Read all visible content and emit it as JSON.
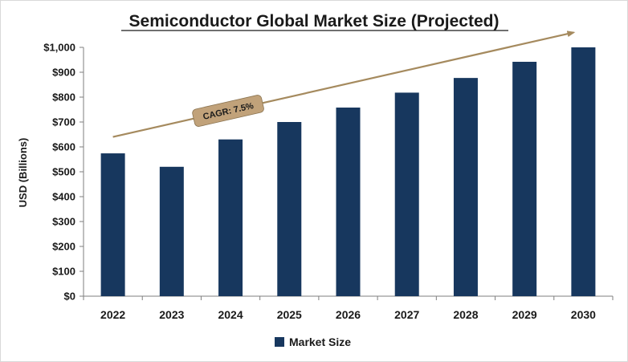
{
  "chart_data": {
    "type": "bar",
    "title": "Semiconductor Global Market Size (Projected)",
    "xlabel": "",
    "ylabel": "USD (Billions)",
    "categories": [
      "2022",
      "2023",
      "2024",
      "2025",
      "2026",
      "2027",
      "2028",
      "2029",
      "2030"
    ],
    "series": [
      {
        "name": "Market Size",
        "values": [
          574,
          520,
          630,
          700,
          758,
          818,
          877,
          942,
          1000
        ]
      }
    ],
    "ylim": [
      0,
      1000
    ],
    "ytick_values": [
      0,
      100,
      200,
      300,
      400,
      500,
      600,
      700,
      800,
      900,
      1000
    ],
    "ytick_labels": [
      "$0",
      "$100",
      "$200",
      "$300",
      "$400",
      "$500",
      "$600",
      "$700",
      "$800",
      "$900",
      "$1,000"
    ],
    "grid": false,
    "legend": "bottom",
    "colors": {
      "bar": "#17375e",
      "trend_arrow": "#a58a5e",
      "badge_fill": "#c1a27a",
      "title_underline": "#1a1a1a"
    },
    "annotation": {
      "label": "CAGR: 7.5%",
      "trend_from": 640,
      "trend_to": 1060
    }
  }
}
